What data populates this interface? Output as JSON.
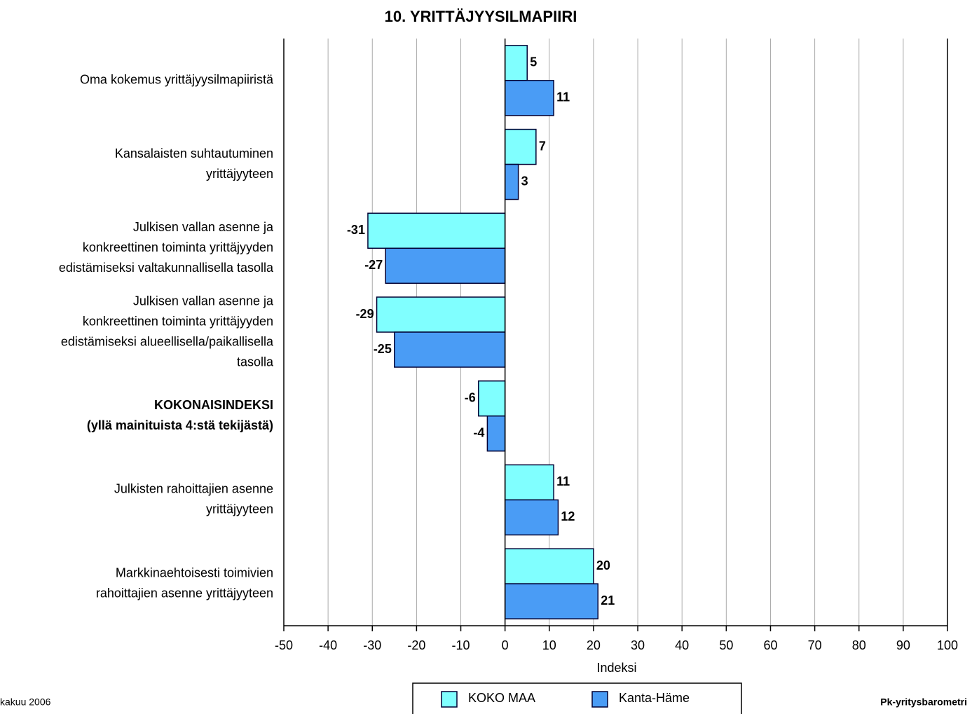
{
  "chart_data": {
    "type": "hbar",
    "title": "10. YRITTÄJYYSILMAPIIRI",
    "x_label": "Indeksi",
    "categories": [
      [
        "Oma kokemus yrittäjyysilmapiiristä"
      ],
      [
        "Kansalaisten suhtautuminen",
        "yrittäjyyteen"
      ],
      [
        "Julkisen vallan asenne ja",
        "konkreettinen toiminta yrittäjyyden",
        "edistämiseksi valtakunnallisella tasolla"
      ],
      [
        "Julkisen vallan asenne ja",
        "konkreettinen toiminta yrittäjyyden",
        "edistämiseksi alueellisella/paikallisella",
        "tasolla"
      ],
      [
        "KOKONAISINDEKSI",
        "(yllä mainituista 4:stä tekijästä)"
      ],
      [
        "Julkisten rahoittajien asenne",
        "yrittäjyyteen"
      ],
      [
        "Markkinaehtoisesti toimivien",
        "rahoittajien asenne yrittäjyyteen"
      ]
    ],
    "bold_categories": [
      4
    ],
    "series": [
      {
        "name": "KOKO MAA",
        "color": "#80ffff",
        "values": [
          5,
          7,
          -31,
          -29,
          -6,
          11,
          20
        ]
      },
      {
        "name": "Kanta-Häme",
        "color": "#4a9cf5",
        "values": [
          11,
          3,
          -27,
          -25,
          -4,
          12,
          21
        ]
      }
    ],
    "xlim": [
      -50,
      100
    ],
    "xticks": [
      -50,
      -40,
      -30,
      -20,
      -10,
      0,
      10,
      20,
      30,
      40,
      50,
      60,
      70,
      80,
      90,
      100
    ],
    "grid": true,
    "legend": "bottom"
  },
  "footer": {
    "left": "kakuu 2006",
    "right": "Pk-yritysbarometri"
  }
}
